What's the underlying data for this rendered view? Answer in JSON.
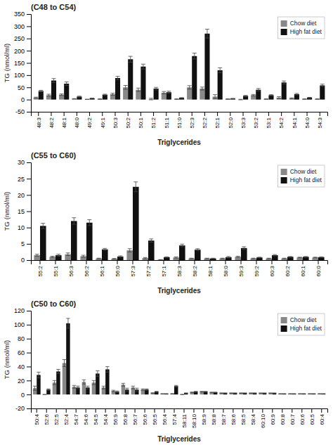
{
  "chart_data": [
    {
      "type": "bar",
      "title": "(C48 to C54)",
      "xlabel": "Triglycerides",
      "ylabel": "TG (nmol/ml)",
      "categories": [
        "48:3",
        "48:2",
        "48:1",
        "48:0",
        "49:2",
        "49:1",
        "50:3",
        "50:2",
        "50:1",
        "51:2",
        "51:1",
        "51:0",
        "52:3",
        "52:2",
        "52:1",
        "52:0",
        "53:3",
        "53:2",
        "53:1",
        "54:2",
        "54:1",
        "54:0",
        "54:3"
      ],
      "series": [
        {
          "name": "Chow diet",
          "color": "#888888",
          "values": [
            8,
            18,
            20,
            3,
            1,
            2,
            22,
            50,
            40,
            2,
            28,
            2,
            50,
            45,
            12,
            2,
            0,
            18,
            2,
            8,
            5,
            2,
            2
          ],
          "errors": [
            2,
            4,
            3,
            1,
            0.5,
            1,
            4,
            8,
            7,
            3,
            5,
            1,
            7,
            6,
            8,
            1,
            1,
            3,
            1,
            4,
            2,
            1,
            1
          ]
        },
        {
          "name": "High fat diet",
          "color": "#111111",
          "values": [
            35,
            78,
            65,
            12,
            5,
            20,
            88,
            165,
            135,
            45,
            30,
            7,
            178,
            270,
            120,
            4,
            15,
            40,
            18,
            70,
            22,
            8,
            58
          ],
          "errors": [
            3,
            8,
            7,
            2,
            1,
            2,
            7,
            12,
            10,
            5,
            4,
            1,
            12,
            18,
            10,
            1,
            2,
            5,
            2,
            6,
            3,
            1,
            5
          ]
        }
      ],
      "ylim": [
        -50,
        350
      ],
      "yticks": [
        -50,
        0,
        50,
        100,
        150,
        200,
        250,
        300,
        350
      ],
      "grid": false,
      "legend": "upper right"
    },
    {
      "type": "bar",
      "title": "(C55 to C60)",
      "xlabel": "Triglycerides",
      "ylabel": "TG (nmol/ml)",
      "categories": [
        "55:2",
        "55:1",
        "56:3",
        "56:2",
        "56:1",
        "56:0",
        "57:3",
        "57:2",
        "57:1",
        "58:3",
        "58:2",
        "58:1",
        "58:0",
        "59:3",
        "59:2",
        "60:3",
        "60:2",
        "60:1",
        "60:0"
      ],
      "series": [
        {
          "name": "Chow diet",
          "color": "#888888",
          "values": [
            1.5,
            1.0,
            1.8,
            1.2,
            0.5,
            0.4,
            3.0,
            0.6,
            0.1,
            0.8,
            0.5,
            0.5,
            0.5,
            1.0,
            0.5,
            0.5,
            0.5,
            0.8,
            0.8
          ],
          "errors": [
            0.3,
            0.2,
            0.4,
            0.3,
            0.1,
            0.1,
            0.5,
            0.2,
            0.05,
            0.2,
            0.1,
            0.1,
            0.1,
            0.2,
            0.1,
            0.1,
            0.1,
            0.1,
            0.1
          ]
        },
        {
          "name": "High fat diet",
          "color": "#111111",
          "values": [
            10.5,
            1.5,
            12.0,
            11.5,
            3.3,
            1.1,
            22.5,
            6.0,
            0.9,
            4.5,
            3.2,
            0.5,
            0.9,
            3.7,
            0.8,
            1.5,
            1.0,
            1.0,
            0.9
          ],
          "errors": [
            0.8,
            0.3,
            1.0,
            0.9,
            0.3,
            0.2,
            1.5,
            0.5,
            0.1,
            0.4,
            0.3,
            0.1,
            0.2,
            0.4,
            0.1,
            0.2,
            0.1,
            0.1,
            0.1
          ]
        }
      ],
      "ylim": [
        0,
        30
      ],
      "yticks": [
        0,
        5,
        10,
        15,
        20,
        25,
        30
      ],
      "grid": false,
      "legend": "upper right"
    },
    {
      "type": "bar",
      "title": "(C50 to C60)",
      "xlabel": "Triglycerides",
      "ylabel": "TG (nmol/ml)",
      "categories": [
        "50:4",
        "52:6",
        "52:5",
        "52:4",
        "54:7",
        "54:6",
        "54:5",
        "54:4",
        "56:9",
        "56:8",
        "56:7",
        "56:6",
        "56:5",
        "56:4",
        "57:4",
        "58:11",
        "58:10",
        "58:9",
        "58:8",
        "58:7",
        "58:6",
        "58:5",
        "58:4",
        "60:10",
        "60:9",
        "60:8",
        "60:7",
        "60:6",
        "60:5",
        "60:4"
      ],
      "series": [
        {
          "name": "Chow diet",
          "color": "#888888",
          "values": [
            9,
            0,
            17,
            45,
            11,
            18,
            17,
            10,
            5,
            14,
            10,
            7,
            2,
            1,
            1,
            0,
            3,
            4,
            3,
            2,
            2,
            2,
            2,
            2,
            2,
            1,
            1,
            1,
            1,
            1
          ],
          "errors": [
            3,
            0,
            3,
            5,
            2,
            3,
            3,
            2,
            1,
            2,
            2,
            1,
            0.5,
            0.2,
            0.3,
            0.2,
            0.5,
            0.5,
            0.4,
            0.3,
            0.3,
            0.3,
            0.3,
            0.2,
            0.2,
            0.2,
            0.2,
            0.2,
            0.2,
            0.2
          ]
        },
        {
          "name": "High fat diet",
          "color": "#111111",
          "values": [
            28,
            7,
            33,
            102,
            10,
            10,
            30,
            36,
            4,
            7,
            7,
            7,
            4,
            1,
            12,
            2,
            4,
            4,
            3,
            2,
            2,
            2,
            2,
            2,
            2,
            1,
            1,
            1,
            1,
            1
          ],
          "errors": [
            4,
            1,
            3,
            7,
            2,
            2,
            4,
            4,
            1,
            2,
            2,
            1,
            0.5,
            0.2,
            1,
            0.2,
            0.5,
            0.5,
            0.4,
            0.3,
            0.3,
            0.3,
            0.3,
            0.2,
            0.2,
            0.2,
            0.2,
            0.2,
            0.2,
            0.2
          ]
        }
      ],
      "ylim": [
        -20,
        120
      ],
      "yticks": [
        -20,
        0,
        20,
        40,
        60,
        80,
        100,
        120
      ],
      "grid": false,
      "legend": "upper right"
    }
  ]
}
